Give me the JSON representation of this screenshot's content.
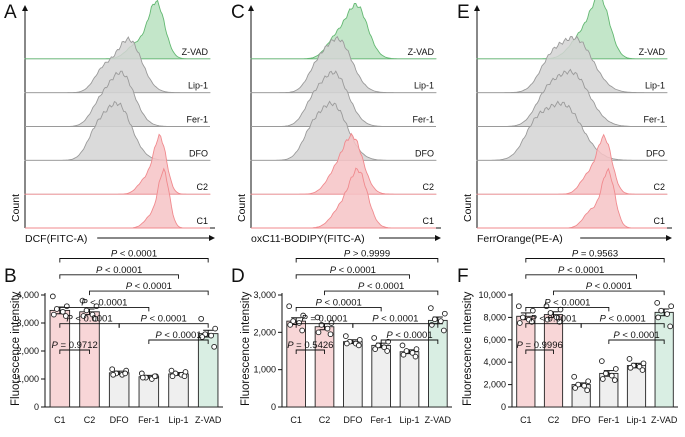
{
  "figure": {
    "colors": {
      "c1": "#f08a8e",
      "c1_fill": "#f6c3c5",
      "gray": "#9a9a9a",
      "gray_fill": "#d3d3d3",
      "green": "#63b872",
      "green_fill": "#b9e2bf",
      "bar_pink": "#f8d6d7",
      "bar_gray": "#efefef",
      "bar_green": "#d9eee3"
    },
    "row_labels": [
      "Z-VAD",
      "Lip-1",
      "Fer-1",
      "DFO",
      "C2",
      "C1"
    ],
    "histograms": [
      {
        "letter": "A",
        "ylabel": "Count",
        "xlabel": "DCF(FITC-A)",
        "rows": [
          {
            "label": "Z-VAD",
            "color": "green",
            "peaks": [
              [
                0.71,
                0.045,
                1.0
              ],
              [
                0.6,
                0.05,
                0.25
              ]
            ]
          },
          {
            "label": "Lip-1",
            "color": "gray",
            "peaks": [
              [
                0.56,
                0.07,
                0.95
              ],
              [
                0.42,
                0.05,
                0.35
              ]
            ]
          },
          {
            "label": "Fer-1",
            "color": "gray",
            "peaks": [
              [
                0.52,
                0.07,
                0.95
              ],
              [
                0.4,
                0.05,
                0.3
              ]
            ]
          },
          {
            "label": "DFO",
            "color": "gray",
            "peaks": [
              [
                0.5,
                0.075,
                1.0
              ],
              [
                0.38,
                0.05,
                0.35
              ]
            ]
          },
          {
            "label": "C2",
            "color": "c1",
            "peaks": [
              [
                0.73,
                0.035,
                1.0
              ],
              [
                0.65,
                0.04,
                0.25
              ]
            ]
          },
          {
            "label": "C1",
            "color": "c1",
            "peaks": [
              [
                0.75,
                0.03,
                1.0
              ],
              [
                0.68,
                0.035,
                0.2
              ]
            ]
          }
        ]
      },
      {
        "letter": "C",
        "ylabel": "Count",
        "xlabel": "oxC11-BODIPY(FITC-A)",
        "rows": [
          {
            "label": "Z-VAD",
            "color": "green",
            "peaks": [
              [
                0.57,
                0.06,
                0.95
              ],
              [
                0.45,
                0.05,
                0.3
              ]
            ]
          },
          {
            "label": "Lip-1",
            "color": "gray",
            "peaks": [
              [
                0.47,
                0.075,
                0.95
              ],
              [
                0.35,
                0.05,
                0.3
              ]
            ]
          },
          {
            "label": "Fer-1",
            "color": "gray",
            "peaks": [
              [
                0.45,
                0.075,
                0.95
              ],
              [
                0.33,
                0.05,
                0.3
              ]
            ]
          },
          {
            "label": "DFO",
            "color": "gray",
            "peaks": [
              [
                0.44,
                0.08,
                1.0
              ],
              [
                0.32,
                0.05,
                0.3
              ]
            ]
          },
          {
            "label": "C2",
            "color": "c1",
            "peaks": [
              [
                0.55,
                0.055,
                1.0
              ],
              [
                0.45,
                0.05,
                0.3
              ]
            ]
          },
          {
            "label": "C1",
            "color": "c1",
            "peaks": [
              [
                0.58,
                0.05,
                1.0
              ],
              [
                0.48,
                0.05,
                0.3
              ]
            ]
          }
        ]
      },
      {
        "letter": "E",
        "ylabel": "Count",
        "xlabel": "FerrOrange(PE-A)",
        "rows": [
          {
            "label": "Z-VAD",
            "color": "green",
            "peaks": [
              [
                0.65,
                0.05,
                1.0
              ],
              [
                0.55,
                0.06,
                0.4
              ]
            ]
          },
          {
            "label": "Lip-1",
            "color": "gray",
            "peaks": [
              [
                0.52,
                0.09,
                0.95
              ],
              [
                0.38,
                0.06,
                0.4
              ]
            ]
          },
          {
            "label": "Fer-1",
            "color": "gray",
            "peaks": [
              [
                0.5,
                0.09,
                0.95
              ],
              [
                0.36,
                0.06,
                0.4
              ]
            ]
          },
          {
            "label": "DFO",
            "color": "gray",
            "peaks": [
              [
                0.45,
                0.1,
                1.0
              ],
              [
                0.3,
                0.06,
                0.4
              ]
            ]
          },
          {
            "label": "C2",
            "color": "c1",
            "peaks": [
              [
                0.67,
                0.04,
                1.0
              ],
              [
                0.58,
                0.04,
                0.3
              ]
            ]
          },
          {
            "label": "C1",
            "color": "c1",
            "peaks": [
              [
                0.69,
                0.035,
                1.0
              ],
              [
                0.6,
                0.04,
                0.3
              ]
            ]
          }
        ]
      }
    ]
  },
  "chart_data": [
    {
      "type": "bar",
      "letter": "B",
      "title": "",
      "xlabel": "",
      "ylabel": "Fluorescence intensity",
      "categories": [
        "C1",
        "C2",
        "DFO",
        "Fer-1",
        "Lip-1",
        "Z-VAD"
      ],
      "values": [
        3450,
        3400,
        1220,
        1080,
        1180,
        2620
      ],
      "sem": [
        120,
        100,
        60,
        50,
        50,
        120
      ],
      "points": [
        [
          3950,
          3600,
          3500,
          3400,
          3300,
          3250
        ],
        [
          3800,
          3600,
          3450,
          3300,
          3250,
          3150
        ],
        [
          1350,
          1300,
          1200,
          1150,
          1150,
          1200
        ],
        [
          1200,
          1100,
          1050,
          1000,
          1050,
          1100
        ],
        [
          1300,
          1250,
          1200,
          1150,
          1100,
          1100
        ],
        [
          3150,
          2800,
          2600,
          2550,
          2500,
          2150
        ]
      ],
      "bar_colors": [
        "bar_pink",
        "bar_pink",
        "bar_gray",
        "bar_gray",
        "bar_gray",
        "bar_green"
      ],
      "ylim": [
        0,
        4000
      ],
      "yticks": [
        0,
        1000,
        2000,
        3000,
        4000
      ],
      "ytick_labels": [
        "0",
        "1,000",
        "2,000",
        "3,000",
        "4,000"
      ],
      "comparisons": [
        {
          "from": 0,
          "to": 5,
          "label": "P < 0.0001",
          "level": 6
        },
        {
          "from": 0,
          "to": 4,
          "label": "P < 0.0001",
          "level": 5
        },
        {
          "from": 1,
          "to": 5,
          "label": "P < 0.0001",
          "level": 4
        },
        {
          "from": 0,
          "to": 3,
          "label": "P < 0.0001",
          "level": 3
        },
        {
          "from": 0,
          "to": 2,
          "label": "P < 0.0001",
          "level": 2
        },
        {
          "from": 2,
          "to": 5,
          "label": "P < 0.0001",
          "level": 2
        },
        {
          "from": 3,
          "to": 5,
          "label": "P < 0.0001",
          "level": 1
        },
        {
          "from": 0,
          "to": 1,
          "label": "P = 0.9712",
          "level": 0.45
        }
      ]
    },
    {
      "type": "bar",
      "letter": "D",
      "title": "",
      "xlabel": "",
      "ylabel": "Fluorescence intensity",
      "categories": [
        "C1",
        "C2",
        "DFO",
        "Fer-1",
        "Lip-1",
        "Z-VAD"
      ],
      "values": [
        2300,
        2150,
        1750,
        1650,
        1480,
        2320
      ],
      "sem": [
        90,
        80,
        50,
        60,
        50,
        90
      ],
      "points": [
        [
          2700,
          2450,
          2300,
          2250,
          2200,
          2050
        ],
        [
          2400,
          2250,
          2200,
          2100,
          2000,
          1950
        ],
        [
          1900,
          1800,
          1750,
          1700,
          1700,
          1650
        ],
        [
          1850,
          1750,
          1650,
          1600,
          1550,
          1500
        ],
        [
          1650,
          1550,
          1500,
          1450,
          1400,
          1350
        ],
        [
          2650,
          2500,
          2350,
          2300,
          2200,
          2050
        ]
      ],
      "bar_colors": [
        "bar_pink",
        "bar_pink",
        "bar_gray",
        "bar_gray",
        "bar_gray",
        "bar_green"
      ],
      "ylim": [
        0,
        3000
      ],
      "yticks": [
        0,
        1000,
        2000,
        3000
      ],
      "ytick_labels": [
        "0",
        "1,000",
        "2,000",
        "3,000"
      ],
      "comparisons": [
        {
          "from": 0,
          "to": 5,
          "label": "P > 0.9999",
          "level": 6
        },
        {
          "from": 0,
          "to": 4,
          "label": "P < 0.0001",
          "level": 5
        },
        {
          "from": 1,
          "to": 5,
          "label": "P < 0.0001",
          "level": 4
        },
        {
          "from": 0,
          "to": 3,
          "label": "P < 0.0001",
          "level": 3
        },
        {
          "from": 0,
          "to": 2,
          "label": "P = 0.0001",
          "level": 2
        },
        {
          "from": 2,
          "to": 5,
          "label": "P < 0.0001",
          "level": 2
        },
        {
          "from": 3,
          "to": 5,
          "label": "P < 0.0001",
          "level": 1
        },
        {
          "from": 0,
          "to": 1,
          "label": "P = 0.5426",
          "level": 0.45
        }
      ]
    },
    {
      "type": "bar",
      "letter": "F",
      "title": "",
      "xlabel": "",
      "ylabel": "Fluorescence intensity",
      "categories": [
        "C1",
        "C2",
        "DFO",
        "Fer-1",
        "Lip-1",
        "Z-VAD"
      ],
      "values": [
        8100,
        8250,
        2000,
        3000,
        3700,
        8450
      ],
      "sem": [
        300,
        250,
        150,
        250,
        200,
        300
      ],
      "points": [
        [
          9000,
          8600,
          8000,
          7800,
          7500,
          7600
        ],
        [
          9000,
          8700,
          8400,
          8000,
          7800,
          7600
        ],
        [
          2700,
          2300,
          2000,
          1900,
          1700,
          1500
        ],
        [
          4100,
          3400,
          3000,
          2800,
          2500,
          2400
        ],
        [
          4300,
          3900,
          3700,
          3600,
          3500,
          3300
        ],
        [
          9300,
          9000,
          8600,
          8300,
          8000,
          7200
        ]
      ],
      "bar_colors": [
        "bar_pink",
        "bar_pink",
        "bar_gray",
        "bar_gray",
        "bar_gray",
        "bar_green"
      ],
      "ylim": [
        0,
        10000
      ],
      "yticks": [
        0,
        2000,
        4000,
        6000,
        8000,
        10000
      ],
      "ytick_labels": [
        "0",
        "2,000",
        "4,000",
        "6,000",
        "8,000",
        "10,000"
      ],
      "comparisons": [
        {
          "from": 0,
          "to": 5,
          "label": "P = 0.9563",
          "level": 6
        },
        {
          "from": 0,
          "to": 4,
          "label": "P < 0.0001",
          "level": 5
        },
        {
          "from": 1,
          "to": 5,
          "label": "P < 0.0001",
          "level": 4
        },
        {
          "from": 0,
          "to": 3,
          "label": "P < 0.0001",
          "level": 3
        },
        {
          "from": 0,
          "to": 2,
          "label": "P < 0.0001",
          "level": 2
        },
        {
          "from": 2,
          "to": 5,
          "label": "P < 0.0001",
          "level": 2
        },
        {
          "from": 3,
          "to": 5,
          "label": "P < 0.0001",
          "level": 1
        },
        {
          "from": 0,
          "to": 1,
          "label": "P = 0.9996",
          "level": 0.45
        }
      ]
    }
  ]
}
